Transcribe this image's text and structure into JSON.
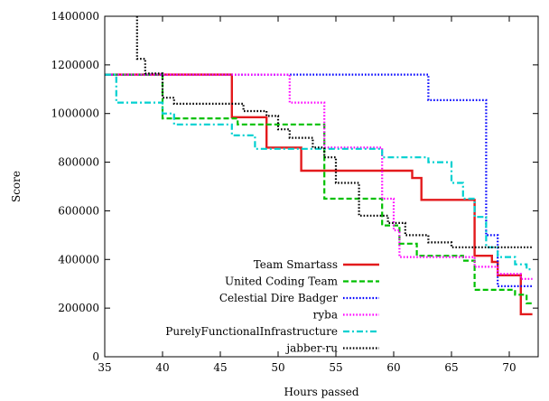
{
  "chart_data": {
    "type": "line",
    "step": true,
    "xlabel": "Hours passed",
    "ylabel": "Score",
    "xlim": [
      35,
      72.5
    ],
    "ylim": [
      0,
      1400000
    ],
    "xticks": [
      35,
      40,
      45,
      50,
      55,
      60,
      65,
      70
    ],
    "yticks": [
      0,
      200000,
      400000,
      600000,
      800000,
      1000000,
      1200000,
      1400000
    ],
    "grid": false,
    "legend_position": "bottom-center",
    "series": [
      {
        "name": "Team Smartass",
        "color": "#e31a1c",
        "dash": "solid",
        "points": [
          [
            35,
            1160000
          ],
          [
            46,
            1160000
          ],
          [
            46,
            985000
          ],
          [
            49,
            985000
          ],
          [
            49,
            860000
          ],
          [
            52,
            860000
          ],
          [
            52,
            765000
          ],
          [
            61.6,
            765000
          ],
          [
            61.6,
            735000
          ],
          [
            62.4,
            735000
          ],
          [
            62.4,
            645000
          ],
          [
            67,
            645000
          ],
          [
            67,
            415000
          ],
          [
            68.5,
            415000
          ],
          [
            68.5,
            390000
          ],
          [
            69,
            390000
          ],
          [
            69,
            335000
          ],
          [
            71,
            335000
          ],
          [
            71,
            175000
          ],
          [
            72,
            175000
          ]
        ]
      },
      {
        "name": "United Coding Team",
        "color": "#00c000",
        "dash": "dashed",
        "points": [
          [
            35,
            1160000
          ],
          [
            40,
            1160000
          ],
          [
            40,
            980000
          ],
          [
            46.5,
            980000
          ],
          [
            46.5,
            955000
          ],
          [
            54,
            955000
          ],
          [
            54,
            650000
          ],
          [
            59,
            650000
          ],
          [
            59,
            540000
          ],
          [
            60.5,
            540000
          ],
          [
            60.5,
            465000
          ],
          [
            62,
            465000
          ],
          [
            62,
            415000
          ],
          [
            66,
            415000
          ],
          [
            66,
            395000
          ],
          [
            67,
            395000
          ],
          [
            67,
            275000
          ],
          [
            70.5,
            275000
          ],
          [
            70.5,
            255000
          ],
          [
            71.5,
            255000
          ],
          [
            71.5,
            220000
          ],
          [
            72,
            220000
          ]
        ]
      },
      {
        "name": "Celestial Dire Badger",
        "color": "#0000ff",
        "dash": "dotted",
        "points": [
          [
            35,
            1160000
          ],
          [
            63,
            1160000
          ],
          [
            63,
            1055000
          ],
          [
            68,
            1055000
          ],
          [
            68,
            500000
          ],
          [
            69,
            500000
          ],
          [
            69,
            290000
          ],
          [
            72,
            290000
          ]
        ]
      },
      {
        "name": "ryba",
        "color": "#ff00ff",
        "dash": "dotted",
        "points": [
          [
            35,
            1160000
          ],
          [
            51,
            1160000
          ],
          [
            51,
            1045000
          ],
          [
            54,
            1045000
          ],
          [
            54,
            860000
          ],
          [
            59,
            860000
          ],
          [
            59,
            650000
          ],
          [
            60,
            650000
          ],
          [
            60,
            520000
          ],
          [
            60.5,
            520000
          ],
          [
            60.5,
            410000
          ],
          [
            67,
            410000
          ],
          [
            67,
            370000
          ],
          [
            69,
            370000
          ],
          [
            69,
            340000
          ],
          [
            71,
            340000
          ],
          [
            71,
            320000
          ],
          [
            72,
            320000
          ]
        ]
      },
      {
        "name": "PurelyFunctionalInfrastructure",
        "color": "#00d0d0",
        "dash": "dashdot",
        "points": [
          [
            35,
            1160000
          ],
          [
            36,
            1160000
          ],
          [
            36,
            1045000
          ],
          [
            40,
            1045000
          ],
          [
            40,
            1000000
          ],
          [
            41,
            1000000
          ],
          [
            41,
            955000
          ],
          [
            46,
            955000
          ],
          [
            46,
            910000
          ],
          [
            48,
            910000
          ],
          [
            48,
            855000
          ],
          [
            59,
            855000
          ],
          [
            59,
            820000
          ],
          [
            63,
            820000
          ],
          [
            63,
            800000
          ],
          [
            65,
            800000
          ],
          [
            65,
            715000
          ],
          [
            66,
            715000
          ],
          [
            66,
            650000
          ],
          [
            67,
            650000
          ],
          [
            67,
            575000
          ],
          [
            68,
            575000
          ],
          [
            68,
            450000
          ],
          [
            69,
            450000
          ],
          [
            69,
            410000
          ],
          [
            70.5,
            410000
          ],
          [
            70.5,
            380000
          ],
          [
            71.5,
            380000
          ],
          [
            71.5,
            360000
          ],
          [
            72,
            360000
          ]
        ]
      },
      {
        "name": "jabber-ru",
        "color": "#000000",
        "dash": "dotted",
        "points": [
          [
            37.8,
            1400000
          ],
          [
            37.8,
            1225000
          ],
          [
            38.5,
            1225000
          ],
          [
            38.5,
            1165000
          ],
          [
            40,
            1165000
          ],
          [
            40,
            1065000
          ],
          [
            41,
            1065000
          ],
          [
            41,
            1040000
          ],
          [
            47,
            1040000
          ],
          [
            47,
            1010000
          ],
          [
            49,
            1010000
          ],
          [
            49,
            990000
          ],
          [
            50,
            990000
          ],
          [
            50,
            935000
          ],
          [
            51,
            935000
          ],
          [
            51,
            900000
          ],
          [
            53,
            900000
          ],
          [
            53,
            860000
          ],
          [
            54,
            860000
          ],
          [
            54,
            820000
          ],
          [
            55,
            820000
          ],
          [
            55,
            715000
          ],
          [
            57,
            715000
          ],
          [
            57,
            580000
          ],
          [
            59.5,
            580000
          ],
          [
            59.5,
            550000
          ],
          [
            61,
            550000
          ],
          [
            61,
            500000
          ],
          [
            63,
            500000
          ],
          [
            63,
            470000
          ],
          [
            65,
            470000
          ],
          [
            65,
            450000
          ],
          [
            72,
            450000
          ]
        ]
      }
    ]
  }
}
